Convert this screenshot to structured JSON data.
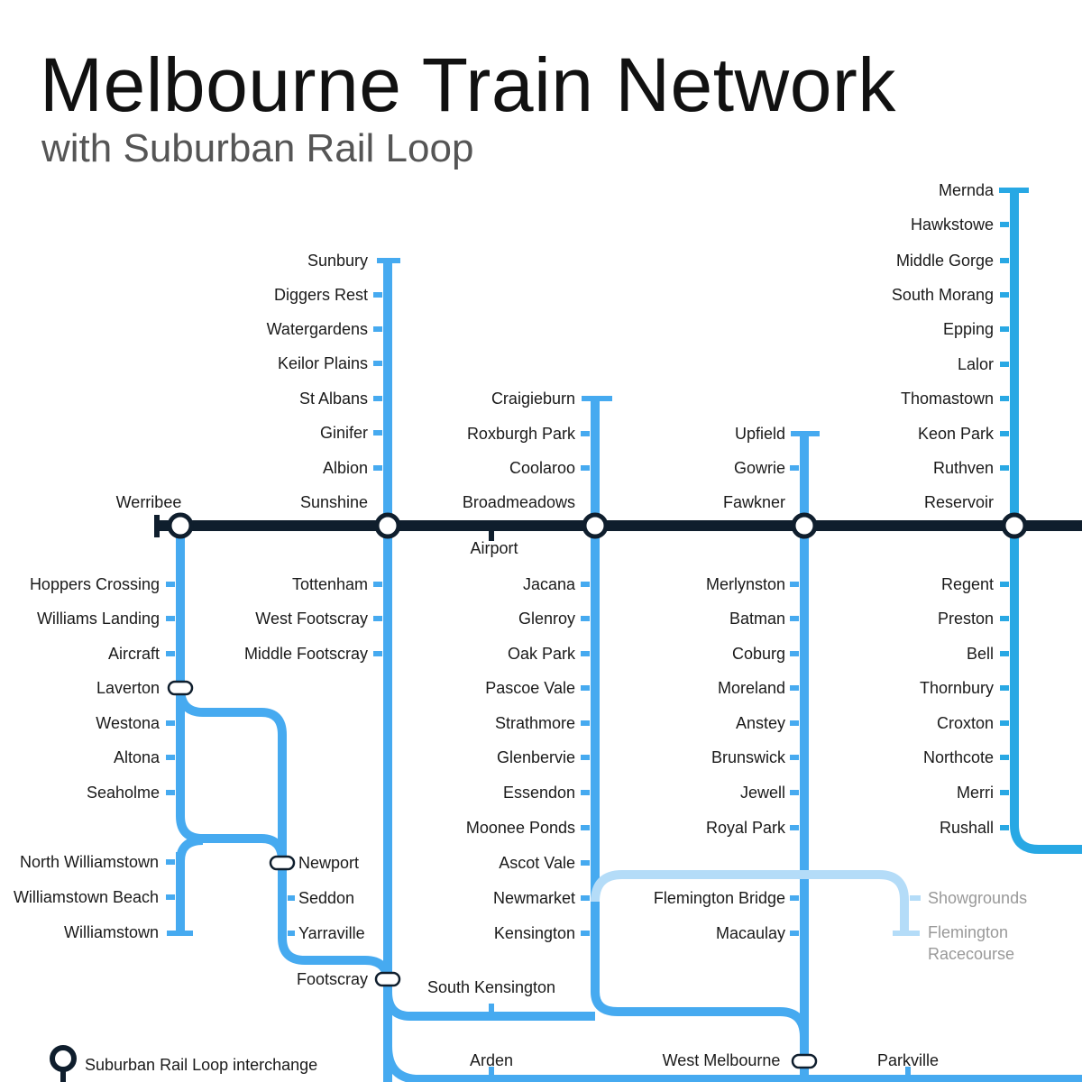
{
  "title": "Melbourne Train Network",
  "subtitle": "with Suburban Rail Loop",
  "colors": {
    "srl": "#0f1e2d",
    "line": "#46aaf0",
    "mernda": "#28a8e4",
    "faded_line": "#b4dcf8",
    "label": "#1a1a1a",
    "faded_label": "#999999"
  },
  "legend": {
    "label": "Suburban Rail Loop interchange",
    "icon": "interchange-marker-icon"
  },
  "srl_line": {
    "name": "Suburban Rail Loop",
    "stations": [
      "Werribee",
      "Sunshine",
      "Airport",
      "Broadmeadows",
      "Fawkner",
      "Reservoir"
    ]
  },
  "lines": {
    "werribee_north": [
      "Hoppers Crossing",
      "Williams Landing",
      "Aircraft",
      "Laverton"
    ],
    "altona_loop": [
      "Westona",
      "Altona",
      "Seaholme"
    ],
    "williamstown": [
      "North Williamstown",
      "Williamstown Beach",
      "Williamstown"
    ],
    "newport_branch": [
      "Newport",
      "Seddon",
      "Yarraville",
      "Footscray"
    ],
    "sunbury": [
      "Sunbury",
      "Diggers Rest",
      "Watergardens",
      "Keilor Plains",
      "St Albans",
      "Ginifer",
      "Albion",
      "Sunshine",
      "Tottenham",
      "West Footscray",
      "Middle Footscray"
    ],
    "craigieburn": [
      "Craigieburn",
      "Roxburgh Park",
      "Coolaroo",
      "Broadmeadows",
      "Jacana",
      "Glenroy",
      "Oak Park",
      "Pascoe Vale",
      "Strathmore",
      "Glenbervie",
      "Essendon",
      "Moonee Ponds",
      "Ascot Vale",
      "Newmarket",
      "Kensington"
    ],
    "upfield": [
      "Upfield",
      "Gowrie",
      "Fawkner",
      "Merlynston",
      "Batman",
      "Coburg",
      "Moreland",
      "Anstey",
      "Brunswick",
      "Jewell",
      "Royal Park",
      "Flemington Bridge",
      "Macaulay"
    ],
    "mernda": [
      "Mernda",
      "Hawkstowe",
      "Middle Gorge",
      "South Morang",
      "Epping",
      "Lalor",
      "Thomastown",
      "Keon Park",
      "Ruthven",
      "Reservoir",
      "Regent",
      "Preston",
      "Bell",
      "Thornbury",
      "Croxton",
      "Northcote",
      "Merri",
      "Rushall"
    ],
    "showgrounds": [
      "Showgrounds",
      "Flemington Racecourse"
    ],
    "city": [
      "South Kensington",
      "Arden",
      "West Melbourne",
      "Parkville"
    ]
  }
}
